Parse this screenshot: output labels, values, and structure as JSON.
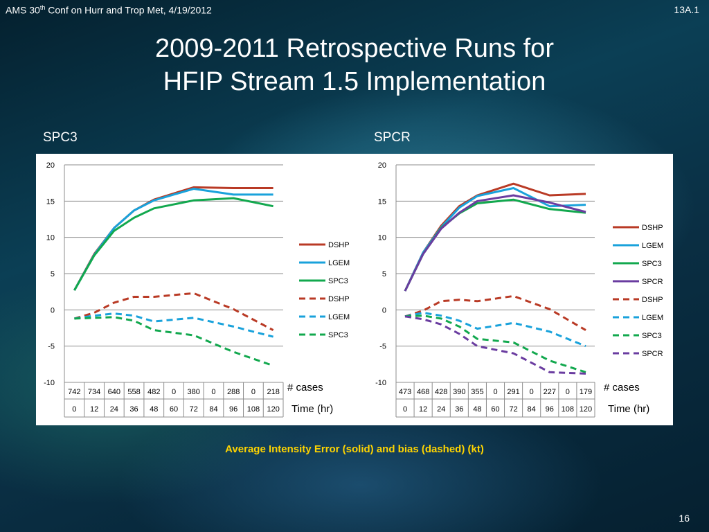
{
  "header": {
    "left_prefix": "AMS 30",
    "left_sup": "th",
    "left_suffix": " Conf on Hurr and Trop Met, 4/19/2012",
    "right": "13A.1"
  },
  "title": {
    "line1": "2009-2011 Retrospective Runs for",
    "line2": "HFIP Stream 1.5 Implementation"
  },
  "caption": "Average Intensity Error (solid) and bias (dashed) (kt)",
  "page_number": "16",
  "colors": {
    "DSHP": "#b93a25",
    "LGEM": "#19a2db",
    "SPC3": "#12a84e",
    "SPCR": "#6a3ca0",
    "caption": "#ffd400"
  },
  "chart_data": [
    {
      "type": "line",
      "panel_label": "SPC3",
      "x": [
        0,
        12,
        24,
        36,
        48,
        60,
        72,
        84,
        96,
        108,
        120
      ],
      "cases": [
        "742",
        "734",
        "640",
        "558",
        "482",
        "0",
        "380",
        "0",
        "288",
        "0",
        "218"
      ],
      "xticks": [
        "0",
        "12",
        "24",
        "36",
        "48",
        "60",
        "72",
        "84",
        "96",
        "108",
        "120"
      ],
      "cases_label": "# cases",
      "xlabel": "Time (hr)",
      "ylim": [
        -10,
        20
      ],
      "yticks": [
        "20",
        "15",
        "10",
        "5",
        "0",
        "-5",
        "-10"
      ],
      "grid": true,
      "legend_position": "right",
      "series": [
        {
          "name": "DSHP",
          "style": "solid",
          "color": "#b93a25",
          "values": [
            2.7,
            7.7,
            11.3,
            13.7,
            15.2,
            null,
            16.9,
            null,
            16.8,
            null,
            16.8
          ]
        },
        {
          "name": "LGEM",
          "style": "solid",
          "color": "#19a2db",
          "values": [
            2.7,
            7.6,
            11.3,
            13.7,
            15.1,
            null,
            16.7,
            null,
            15.9,
            null,
            15.9
          ]
        },
        {
          "name": "SPC3",
          "style": "solid",
          "color": "#12a84e",
          "values": [
            2.7,
            7.5,
            10.9,
            12.7,
            14.0,
            null,
            15.1,
            null,
            15.4,
            null,
            14.3
          ]
        },
        {
          "name": "DSHP",
          "style": "dashed",
          "color": "#b93a25",
          "values": [
            -1.2,
            -0.4,
            1.0,
            1.8,
            1.8,
            null,
            2.3,
            null,
            0.1,
            null,
            -2.8
          ]
        },
        {
          "name": "LGEM",
          "style": "dashed",
          "color": "#19a2db",
          "values": [
            -1.2,
            -0.8,
            -0.5,
            -0.8,
            -1.6,
            null,
            -1.1,
            null,
            -2.3,
            null,
            -3.7
          ]
        },
        {
          "name": "SPC3",
          "style": "dashed",
          "color": "#12a84e",
          "values": [
            -1.2,
            -1.1,
            -1.0,
            -1.5,
            -2.8,
            null,
            -3.5,
            null,
            -5.8,
            null,
            -7.7
          ]
        }
      ]
    },
    {
      "type": "line",
      "panel_label": "SPCR",
      "x": [
        0,
        12,
        24,
        36,
        48,
        60,
        72,
        84,
        96,
        108,
        120
      ],
      "cases": [
        "473",
        "468",
        "428",
        "390",
        "355",
        "0",
        "291",
        "0",
        "227",
        "0",
        "179"
      ],
      "xticks": [
        "0",
        "12",
        "24",
        "36",
        "48",
        "60",
        "72",
        "84",
        "96",
        "108",
        "120"
      ],
      "cases_label": "# cases",
      "xlabel": "Time (hr)",
      "ylim": [
        -10,
        20
      ],
      "yticks": [
        "20",
        "15",
        "10",
        "5",
        "0",
        "-5",
        "-10"
      ],
      "grid": true,
      "legend_position": "right",
      "series": [
        {
          "name": "DSHP",
          "style": "solid",
          "color": "#b93a25",
          "values": [
            2.6,
            7.9,
            11.6,
            14.3,
            15.8,
            null,
            17.4,
            null,
            15.8,
            null,
            16.0
          ]
        },
        {
          "name": "LGEM",
          "style": "solid",
          "color": "#19a2db",
          "values": [
            2.6,
            7.9,
            11.4,
            14.1,
            15.7,
            null,
            16.8,
            null,
            14.3,
            null,
            14.5
          ]
        },
        {
          "name": "SPC3",
          "style": "solid",
          "color": "#12a84e",
          "values": [
            2.6,
            7.7,
            11.3,
            13.3,
            14.7,
            null,
            15.2,
            null,
            13.9,
            null,
            13.4
          ]
        },
        {
          "name": "SPCR",
          "style": "solid",
          "color": "#6a3ca0",
          "values": [
            2.6,
            7.7,
            11.2,
            13.4,
            15.0,
            null,
            15.8,
            null,
            14.8,
            null,
            13.5
          ]
        },
        {
          "name": "DSHP",
          "style": "dashed",
          "color": "#b93a25",
          "values": [
            -0.9,
            -0.1,
            1.2,
            1.4,
            1.2,
            null,
            1.9,
            null,
            0.1,
            null,
            -2.8
          ]
        },
        {
          "name": "LGEM",
          "style": "dashed",
          "color": "#19a2db",
          "values": [
            -0.9,
            -0.4,
            -0.8,
            -1.5,
            -2.6,
            null,
            -1.8,
            null,
            -3.0,
            null,
            -5.0
          ]
        },
        {
          "name": "SPC3",
          "style": "dashed",
          "color": "#12a84e",
          "values": [
            -0.9,
            -0.8,
            -1.2,
            -2.3,
            -4.0,
            null,
            -4.5,
            null,
            -7.0,
            null,
            -8.6
          ]
        },
        {
          "name": "SPCR",
          "style": "dashed",
          "color": "#6a3ca0",
          "values": [
            -0.9,
            -1.3,
            -2.0,
            -3.3,
            -5.0,
            null,
            -6.0,
            null,
            -8.6,
            null,
            -8.8
          ]
        }
      ]
    }
  ]
}
